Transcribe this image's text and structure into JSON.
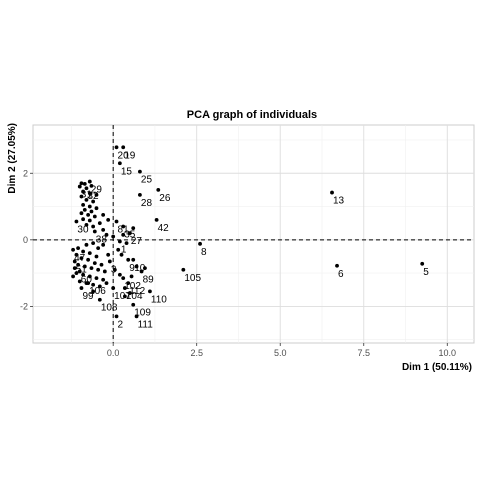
{
  "chart_data": {
    "type": "scatter",
    "title": "PCA graph of individuals",
    "xlabel": "Dim 1 (50.11%)",
    "ylabel": "Dim 2 (27.05%)",
    "xlim": [
      -2.4,
      10.8
    ],
    "ylim": [
      -3.1,
      3.45
    ],
    "xticks": [
      0.0,
      2.5,
      5.0,
      7.5,
      10.0
    ],
    "xtick_labels": [
      "0.0",
      "2.5",
      "5.0",
      "7.5",
      "10.0"
    ],
    "yticks": [
      -2,
      0,
      2
    ],
    "ytick_labels": [
      "-2",
      "0",
      "2"
    ],
    "reference_lines": {
      "x": 0,
      "y": 0,
      "style": "dashed"
    },
    "grid": true,
    "points": [
      {
        "label": "13",
        "x": 6.55,
        "y": 1.42
      },
      {
        "label": "6",
        "x": 6.7,
        "y": -0.78
      },
      {
        "label": "5",
        "x": 9.25,
        "y": -0.72
      },
      {
        "label": "8",
        "x": 2.6,
        "y": -0.12
      },
      {
        "label": "105",
        "x": 2.1,
        "y": -0.9
      },
      {
        "label": "26",
        "x": 1.35,
        "y": 1.5
      },
      {
        "label": "42",
        "x": 1.3,
        "y": 0.6
      },
      {
        "label": "28",
        "x": 0.8,
        "y": 1.35
      },
      {
        "label": "25",
        "x": 0.8,
        "y": 2.05
      },
      {
        "label": "15",
        "x": 0.2,
        "y": 2.3
      },
      {
        "label": "20",
        "x": 0.1,
        "y": 2.78
      },
      {
        "label": "19",
        "x": 0.3,
        "y": 2.78
      },
      {
        "label": "27",
        "x": 0.5,
        "y": 0.2
      },
      {
        "label": "81",
        "x": 0.1,
        "y": 0.55
      },
      {
        "label": "35",
        "x": 0.3,
        "y": 0.4
      },
      {
        "label": "1",
        "x": 0.2,
        "y": -0.05
      },
      {
        "label": "9",
        "x": 0.45,
        "y": -0.6
      },
      {
        "label": "10",
        "x": 0.6,
        "y": -0.6
      },
      {
        "label": "89",
        "x": 0.85,
        "y": -0.95
      },
      {
        "label": "3",
        "x": -0.1,
        "y": -0.65
      },
      {
        "label": "110",
        "x": 1.1,
        "y": -1.55
      },
      {
        "label": "109",
        "x": 0.6,
        "y": -1.95
      },
      {
        "label": "111",
        "x": 0.7,
        "y": -2.3
      },
      {
        "label": "2",
        "x": 0.1,
        "y": -2.3
      },
      {
        "label": "108",
        "x": -0.4,
        "y": -1.8
      },
      {
        "label": "107",
        "x": 0.0,
        "y": -1.45
      },
      {
        "label": "104",
        "x": 0.35,
        "y": -1.45
      },
      {
        "label": "102",
        "x": 0.3,
        "y": -1.15
      },
      {
        "label": "112",
        "x": 0.45,
        "y": -1.3
      },
      {
        "label": "106",
        "x": -0.75,
        "y": -1.3
      },
      {
        "label": "99",
        "x": -0.95,
        "y": -1.45
      },
      {
        "label": "29",
        "x": -0.7,
        "y": 1.75
      },
      {
        "label": "31",
        "x": -1.0,
        "y": 1.6
      },
      {
        "label": "32",
        "x": -0.8,
        "y": 1.55
      },
      {
        "label": "30",
        "x": -1.1,
        "y": 0.55
      },
      {
        "label": "38",
        "x": -0.55,
        "y": 0.25
      },
      {
        "label": "47",
        "x": -1.2,
        "y": -0.3
      },
      {
        "label": "51",
        "x": -1.15,
        "y": -0.65
      },
      {
        "label": "60",
        "x": -1.0,
        "y": -0.95
      },
      {
        "label": "",
        "x": -0.95,
        "y": 1.7
      },
      {
        "label": "",
        "x": -0.85,
        "y": 1.68
      },
      {
        "label": "",
        "x": -0.65,
        "y": 1.62
      },
      {
        "label": "",
        "x": -0.9,
        "y": 1.45
      },
      {
        "label": "",
        "x": -0.7,
        "y": 1.4
      },
      {
        "label": "",
        "x": -0.5,
        "y": 1.35
      },
      {
        "label": "",
        "x": -0.95,
        "y": 1.3
      },
      {
        "label": "",
        "x": -0.8,
        "y": 1.2
      },
      {
        "label": "",
        "x": -0.6,
        "y": 1.15
      },
      {
        "label": "",
        "x": -0.9,
        "y": 1.05
      },
      {
        "label": "",
        "x": -0.7,
        "y": 1.0
      },
      {
        "label": "",
        "x": -0.5,
        "y": 0.95
      },
      {
        "label": "",
        "x": -0.85,
        "y": 0.9
      },
      {
        "label": "",
        "x": -0.65,
        "y": 0.85
      },
      {
        "label": "",
        "x": -0.95,
        "y": 0.8
      },
      {
        "label": "",
        "x": -0.75,
        "y": 0.75
      },
      {
        "label": "",
        "x": -0.55,
        "y": 0.7
      },
      {
        "label": "",
        "x": -0.9,
        "y": 0.62
      },
      {
        "label": "",
        "x": -0.7,
        "y": 0.58
      },
      {
        "label": "",
        "x": -0.8,
        "y": 0.45
      },
      {
        "label": "",
        "x": -0.6,
        "y": 0.4
      },
      {
        "label": "",
        "x": -0.4,
        "y": 0.5
      },
      {
        "label": "",
        "x": -0.3,
        "y": 0.3
      },
      {
        "label": "",
        "x": -0.2,
        "y": 0.15
      },
      {
        "label": "",
        "x": 0.3,
        "y": 0.15
      },
      {
        "label": "",
        "x": 0.4,
        "y": -0.1
      },
      {
        "label": "",
        "x": 0.15,
        "y": -0.3
      },
      {
        "label": "",
        "x": -0.3,
        "y": -0.15
      },
      {
        "label": "",
        "x": -0.15,
        "y": -0.45
      },
      {
        "label": "",
        "x": -0.45,
        "y": -0.25
      },
      {
        "label": "",
        "x": -0.6,
        "y": -0.1
      },
      {
        "label": "",
        "x": -0.8,
        "y": -0.15
      },
      {
        "label": "",
        "x": -1.05,
        "y": -0.25
      },
      {
        "label": "",
        "x": -0.9,
        "y": -0.35
      },
      {
        "label": "",
        "x": -0.7,
        "y": -0.4
      },
      {
        "label": "",
        "x": -0.5,
        "y": -0.5
      },
      {
        "label": "",
        "x": -1.1,
        "y": -0.45
      },
      {
        "label": "",
        "x": -0.95,
        "y": -0.55
      },
      {
        "label": "",
        "x": -0.75,
        "y": -0.6
      },
      {
        "label": "",
        "x": -0.55,
        "y": -0.7
      },
      {
        "label": "",
        "x": -0.35,
        "y": -0.75
      },
      {
        "label": "",
        "x": -1.05,
        "y": -0.75
      },
      {
        "label": "",
        "x": -0.85,
        "y": -0.8
      },
      {
        "label": "",
        "x": -0.65,
        "y": -0.85
      },
      {
        "label": "",
        "x": -0.45,
        "y": -0.9
      },
      {
        "label": "",
        "x": -0.25,
        "y": -0.95
      },
      {
        "label": "",
        "x": -1.1,
        "y": -1.0
      },
      {
        "label": "",
        "x": -0.9,
        "y": -1.05
      },
      {
        "label": "",
        "x": -0.7,
        "y": -1.1
      },
      {
        "label": "",
        "x": -0.5,
        "y": -1.15
      },
      {
        "label": "",
        "x": -0.3,
        "y": -1.2
      },
      {
        "label": "",
        "x": -1.0,
        "y": -1.25
      },
      {
        "label": "",
        "x": -0.8,
        "y": -1.3
      },
      {
        "label": "",
        "x": -0.6,
        "y": -1.35
      },
      {
        "label": "",
        "x": -0.4,
        "y": -1.4
      },
      {
        "label": "",
        "x": -0.2,
        "y": -1.3
      },
      {
        "label": "",
        "x": 0.05,
        "y": -0.9
      },
      {
        "label": "",
        "x": 0.2,
        "y": -1.05
      },
      {
        "label": "",
        "x": 0.55,
        "y": -1.1
      },
      {
        "label": "",
        "x": 0.7,
        "y": -0.8
      },
      {
        "label": "",
        "x": 0.95,
        "y": -0.85
      },
      {
        "label": "",
        "x": 0.35,
        "y": -1.7
      },
      {
        "label": "",
        "x": 0.5,
        "y": -1.6
      },
      {
        "label": "",
        "x": 0.25,
        "y": -0.45
      },
      {
        "label": "",
        "x": 0.0,
        "y": 0.1
      },
      {
        "label": "",
        "x": 0.6,
        "y": 0.35
      },
      {
        "label": "",
        "x": -0.15,
        "y": 0.6
      },
      {
        "label": "",
        "x": -0.3,
        "y": 0.75
      },
      {
        "label": "",
        "x": -1.15,
        "y": -0.85
      },
      {
        "label": "",
        "x": -1.2,
        "y": -1.1
      },
      {
        "label": "",
        "x": -0.6,
        "y": -1.55
      }
    ]
  }
}
